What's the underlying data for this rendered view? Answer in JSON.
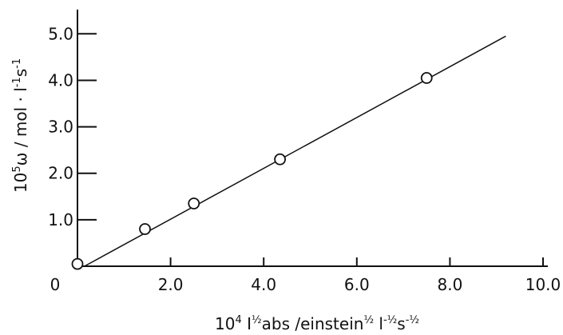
{
  "chart_data": {
    "type": "scatter",
    "title": "",
    "origin_label": "0",
    "xlabel": {
      "parts": [
        {
          "text": "10",
          "sup": false
        },
        {
          "text": "4",
          "sup": true
        },
        {
          "text": " I",
          "sup": false
        },
        {
          "text": "½",
          "sup": true
        },
        {
          "text": "abs /einstein",
          "sup": false
        },
        {
          "text": "½",
          "sup": true
        },
        {
          "text": " l",
          "sup": false
        },
        {
          "text": "-½",
          "sup": true
        },
        {
          "text": "s",
          "sup": false
        },
        {
          "text": "-½",
          "sup": true
        }
      ]
    },
    "ylabel": {
      "parts": [
        {
          "text": "10",
          "sup": false
        },
        {
          "text": "5",
          "sup": true
        },
        {
          "text": "ω / mol · l",
          "sup": false
        },
        {
          "text": "-1",
          "sup": true
        },
        {
          "text": "s",
          "sup": false
        },
        {
          "text": "-1",
          "sup": true
        }
      ]
    },
    "xlim": [
      0,
      10.0
    ],
    "ylim": [
      0,
      5.0
    ],
    "x_ticks": [
      2.0,
      4.0,
      6.0,
      8.0,
      10.0
    ],
    "x_tick_labels": [
      "2.0",
      "4.0",
      "6.0",
      "8.0",
      "10.0"
    ],
    "y_ticks": [
      1.0,
      2.0,
      3.0,
      4.0,
      5.0
    ],
    "y_tick_labels": [
      "1.0",
      "2.0",
      "3.0",
      "4.0",
      "5.0"
    ],
    "grid": false,
    "points": [
      {
        "x": 0.0,
        "y": 0.05
      },
      {
        "x": 1.45,
        "y": 0.8
      },
      {
        "x": 2.5,
        "y": 1.35
      },
      {
        "x": 4.35,
        "y": 2.3
      },
      {
        "x": 7.5,
        "y": 4.05
      }
    ],
    "fit_line": {
      "x": [
        0.15,
        9.2
      ],
      "y": [
        0.0,
        4.95
      ]
    }
  }
}
